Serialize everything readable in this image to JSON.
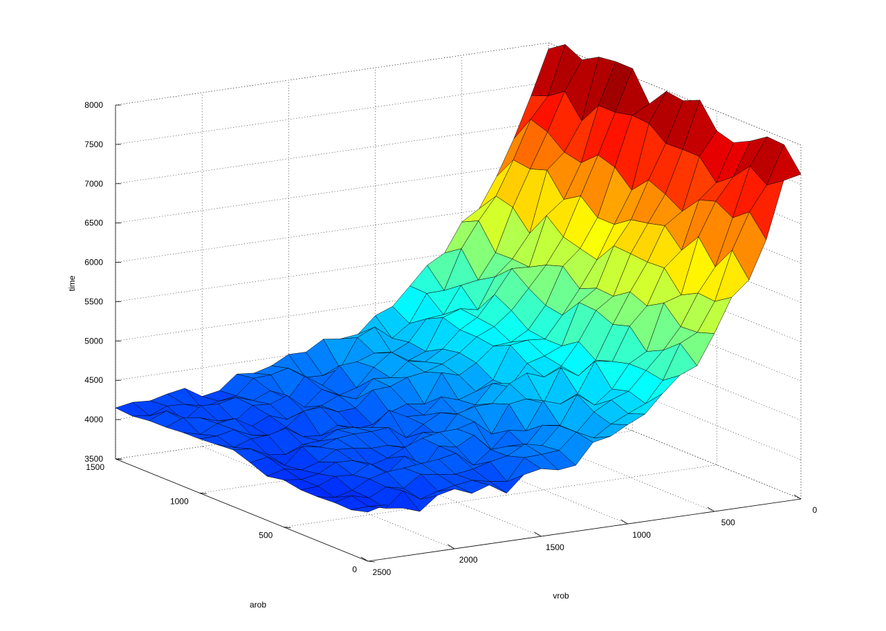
{
  "chart_data": {
    "type": "surface",
    "title": "",
    "xlabel": "vrob",
    "ylabel": "arob",
    "zlabel": "time",
    "colormap": "jet",
    "grid": true,
    "x_axis": {
      "label": "vrob",
      "range": [
        0,
        2500
      ],
      "ticks": [
        "0",
        "500",
        "1000",
        "1500",
        "2000",
        "2500"
      ]
    },
    "y_axis": {
      "label": "arob",
      "range": [
        0,
        1500
      ],
      "ticks": [
        "0",
        "500",
        "1000",
        "1500"
      ]
    },
    "z_axis": {
      "label": "time",
      "range": [
        3500,
        8000
      ],
      "ticks": [
        "3500",
        "4000",
        "4500",
        "5000",
        "5500",
        "6000",
        "6500",
        "7000",
        "7500",
        "8000"
      ]
    },
    "surface": {
      "vrob": [
        0,
        100,
        200,
        300,
        400,
        500,
        600,
        700,
        800,
        900,
        1000,
        1100,
        1200,
        1300,
        1400,
        1500,
        1600,
        1700,
        1800,
        1900,
        2000,
        2100,
        2200,
        2300,
        2400,
        2500
      ],
      "arob": [
        0,
        100,
        200,
        300,
        400,
        500,
        600,
        700,
        800,
        900,
        1000,
        1100,
        1200,
        1300,
        1400,
        1500
      ],
      "time_at_arob_0": [
        7850,
        7400,
        6950,
        6500,
        6100,
        5750,
        5450,
        5200,
        5000,
        4850,
        4700,
        4600,
        4500,
        4420,
        4350,
        4300,
        4260,
        4230,
        4200,
        4180,
        4160,
        4140,
        4120,
        4110,
        4100,
        4090
      ],
      "noise_amplitude": 220
    }
  }
}
